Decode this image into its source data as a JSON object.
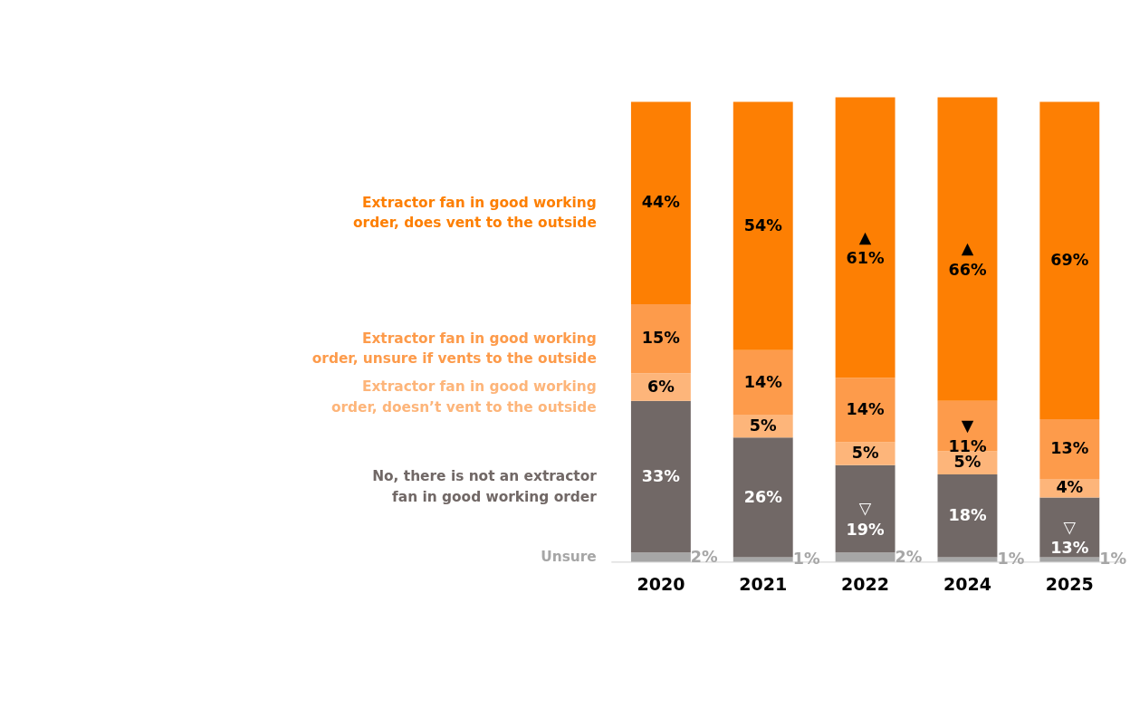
{
  "chart_data": {
    "type": "bar",
    "stacked": true,
    "legend": "left",
    "categories": [
      "2020",
      "2021",
      "2022",
      "2024",
      "2025"
    ],
    "series": [
      {
        "name": "Unsure",
        "color": "#a6a6a6",
        "values": [
          2,
          1,
          2,
          1,
          1
        ],
        "value_labels": [
          "2%",
          "1%",
          "2%",
          "1%",
          "1%"
        ]
      },
      {
        "name": "No, there is not an extractor\nfan in good working order",
        "color": "#716866",
        "values": [
          33,
          26,
          19,
          18,
          13
        ],
        "value_labels": [
          "33%",
          "26%",
          "▽\n19%",
          "18%",
          "▽\n13%"
        ]
      },
      {
        "name": "Extractor fan in good working\norder, doesn’t vent to the outside",
        "color": "#fdb57a",
        "values": [
          6,
          5,
          5,
          5,
          4
        ],
        "value_labels": [
          "6%",
          "5%",
          "5%",
          "5%",
          "4%"
        ]
      },
      {
        "name": "Extractor fan in good working\norder, unsure if vents to the outside",
        "color": "#fd9b4b",
        "values": [
          15,
          14,
          14,
          11,
          13
        ],
        "value_labels": [
          "15%",
          "14%",
          "14%",
          "▼\n11%",
          "13%"
        ]
      },
      {
        "name": "Extractor fan in good working\norder, does vent to the outside",
        "color": "#fd7f03",
        "values": [
          44,
          54,
          61,
          66,
          69
        ],
        "value_labels": [
          "44%",
          "54%",
          "▲\n61%",
          "▲\n66%",
          "69%"
        ]
      }
    ]
  }
}
